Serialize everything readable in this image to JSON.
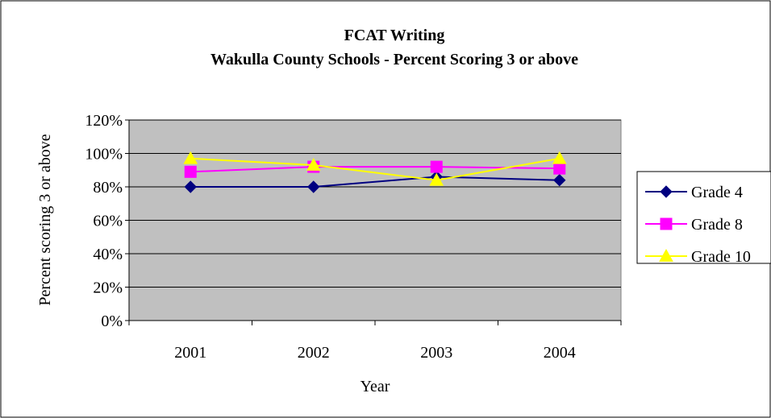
{
  "chart_data": {
    "type": "line",
    "title": "FCAT Writing",
    "subtitle": "Wakulla County Schools - Percent Scoring 3 or above",
    "xlabel": "Year",
    "ylabel": "Percent scoring 3 or above",
    "categories": [
      "2001",
      "2002",
      "2003",
      "2004"
    ],
    "ylim": [
      0,
      120
    ],
    "yticks": [
      0,
      20,
      40,
      60,
      80,
      100,
      120
    ],
    "ytick_labels": [
      "0%",
      "20%",
      "40%",
      "60%",
      "80%",
      "100%",
      "120%"
    ],
    "grid": true,
    "legend_position": "right",
    "series": [
      {
        "name": "Grade 4",
        "values": [
          80,
          80,
          86,
          84
        ],
        "color": "#000080",
        "marker": "diamond"
      },
      {
        "name": "Grade 8",
        "values": [
          89,
          92,
          92,
          91
        ],
        "color": "#FF00FF",
        "marker": "square"
      },
      {
        "name": "Grade 10",
        "values": [
          97,
          93,
          84,
          97
        ],
        "color": "#FFFF00",
        "marker": "triangle"
      }
    ],
    "plot_background": "#C0C0C0"
  }
}
